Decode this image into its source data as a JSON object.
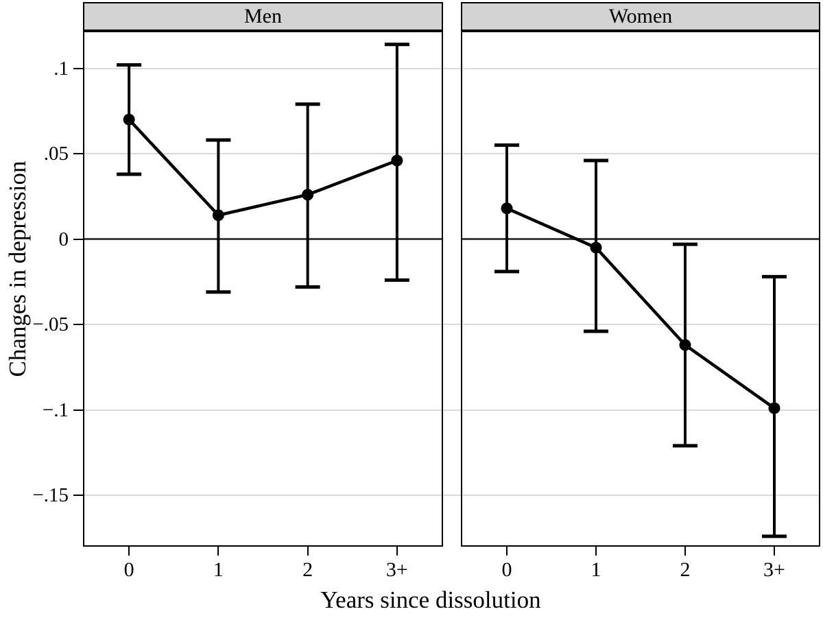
{
  "chart_data": {
    "type": "line",
    "subtype": "point-estimates-with-error-bars",
    "panels": [
      {
        "title": "Men",
        "categories": [
          "0",
          "1",
          "2",
          "3+"
        ],
        "estimates": [
          0.07,
          0.014,
          0.026,
          0.046
        ],
        "ci_low": [
          0.038,
          -0.031,
          -0.028,
          -0.024
        ],
        "ci_high": [
          0.102,
          0.058,
          0.079,
          0.114
        ]
      },
      {
        "title": "Women",
        "categories": [
          "0",
          "1",
          "2",
          "3+"
        ],
        "estimates": [
          0.018,
          -0.005,
          -0.062,
          -0.099
        ],
        "ci_low": [
          -0.019,
          -0.054,
          -0.121,
          -0.174
        ],
        "ci_high": [
          0.055,
          0.046,
          -0.003,
          -0.022
        ]
      }
    ],
    "xlabel": "Years since dissolution",
    "ylabel": "Changes in depression",
    "y_ticks": [
      {
        "value": 0.1,
        "label": ".1"
      },
      {
        "value": 0.05,
        "label": ".05"
      },
      {
        "value": 0,
        "label": "0"
      },
      {
        "value": -0.05,
        "label": "−.05"
      },
      {
        "value": -0.1,
        "label": "−.1"
      },
      {
        "value": -0.15,
        "label": "−.15"
      }
    ],
    "ylim": [
      -0.18,
      0.122
    ],
    "grid": true,
    "zero_line": true,
    "legend": "none",
    "colors": {
      "series": "#000000",
      "grid_line": "#dadada",
      "zero_line": "#3d3d3d",
      "panel_border": "#000000",
      "header_fill": "#d3d3d3",
      "header_text": "#000000",
      "background": "#ffffff"
    }
  }
}
